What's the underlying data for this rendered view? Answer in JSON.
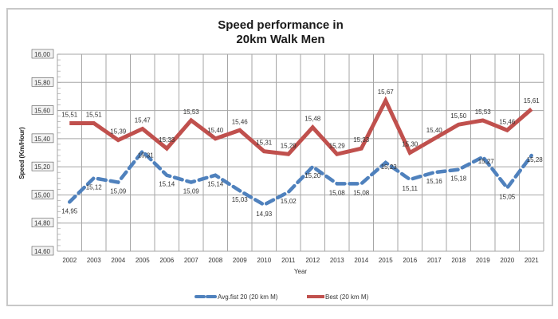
{
  "chart_data": {
    "type": "line",
    "title_lines": [
      "Speed performance in",
      "20km Walk Men"
    ],
    "xlabel": "Year",
    "ylabel": "Speed (Km/Hour)",
    "categories": [
      "2002",
      "2003",
      "2004",
      "2005",
      "2006",
      "2007",
      "2008",
      "2009",
      "2010",
      "2011",
      "2012",
      "2013",
      "2014",
      "2015",
      "2016",
      "2017",
      "2018",
      "2019",
      "2020",
      "2021"
    ],
    "ylim": [
      14.6,
      16.0
    ],
    "yticks": [
      14.6,
      14.8,
      15.0,
      15.2,
      15.4,
      15.6,
      15.8,
      16.0
    ],
    "ytick_labels": [
      "14,60",
      "14,80",
      "15,00",
      "15,20",
      "15,40",
      "15,60",
      "15,80",
      "16,00"
    ],
    "grid": true,
    "legend_position": "bottom",
    "series": [
      {
        "name": "Avg.fist 20 (20 km M)",
        "style": "dashed",
        "color": "#4f81bd",
        "values": [
          14.95,
          15.12,
          15.09,
          15.31,
          15.14,
          15.09,
          15.14,
          15.03,
          14.93,
          15.02,
          15.2,
          15.08,
          15.08,
          15.23,
          15.11,
          15.16,
          15.18,
          15.27,
          15.05,
          15.28
        ],
        "labels": [
          "14,95",
          "15,12",
          "15,09",
          "15,31",
          "15,14",
          "15,09",
          "15,14",
          "15,03",
          "14,93",
          "15,02",
          "15,20",
          "15,08",
          "15,08",
          "15,23",
          "15,11",
          "15,16",
          "15,18",
          "15,27",
          "15,05",
          "15,28"
        ]
      },
      {
        "name": "Best (20 km M)",
        "style": "solid",
        "color": "#c0504d",
        "values": [
          15.51,
          15.51,
          15.39,
          15.47,
          15.33,
          15.53,
          15.4,
          15.46,
          15.31,
          15.29,
          15.48,
          15.29,
          15.33,
          15.67,
          15.3,
          15.4,
          15.5,
          15.53,
          15.46,
          15.61
        ],
        "labels": [
          "15,51",
          "15,51",
          "15,39",
          "15,47",
          "15,33",
          "15,53",
          "15,40",
          "15,46",
          "15,31",
          "15,29",
          "15,48",
          "15,29",
          "15,33",
          "15,67",
          "15,30",
          "15,40",
          "15,50",
          "15,53",
          "15,46",
          "15,61"
        ]
      }
    ]
  }
}
